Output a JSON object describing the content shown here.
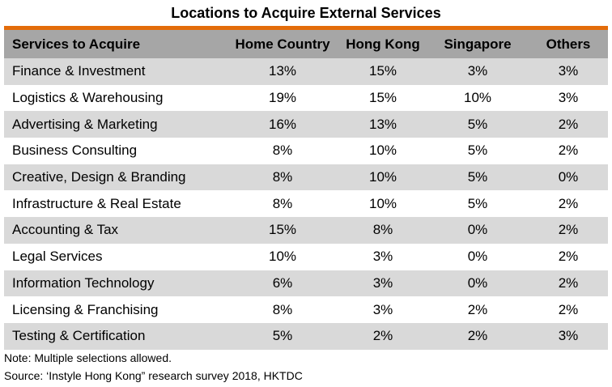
{
  "chart_data": {
    "type": "table",
    "title": "Locations to Acquire External Services",
    "columns": [
      "Services to Acquire",
      "Home Country",
      "Hong Kong",
      "Singapore",
      "Others"
    ],
    "rows": [
      [
        "Finance & Investment",
        "13%",
        "15%",
        "3%",
        "3%"
      ],
      [
        "Logistics & Warehousing",
        "19%",
        "15%",
        "10%",
        "3%"
      ],
      [
        "Advertising & Marketing",
        "16%",
        "13%",
        "5%",
        "2%"
      ],
      [
        "Business Consulting",
        "8%",
        "10%",
        "5%",
        "2%"
      ],
      [
        "Creative, Design & Branding",
        "8%",
        "10%",
        "5%",
        "0%"
      ],
      [
        "Infrastructure & Real Estate",
        "8%",
        "10%",
        "5%",
        "2%"
      ],
      [
        "Accounting & Tax",
        "15%",
        "8%",
        "0%",
        "2%"
      ],
      [
        "Legal Services",
        "10%",
        "3%",
        "0%",
        "2%"
      ],
      [
        "Information Technology",
        "6%",
        "3%",
        "0%",
        "2%"
      ],
      [
        "Licensing & Franchising",
        "8%",
        "3%",
        "2%",
        "2%"
      ],
      [
        "Testing & Certification",
        "5%",
        "2%",
        "2%",
        "3%"
      ]
    ],
    "notes": [
      "Note: Multiple selections allowed.",
      "Source: ‘Instyle Hong Kong” research survey 2018, HKTDC"
    ],
    "colors": {
      "accent_rule": "#e36c0a",
      "header_bg": "#a6a6a6",
      "band_bg": "#d9d9d9"
    }
  }
}
